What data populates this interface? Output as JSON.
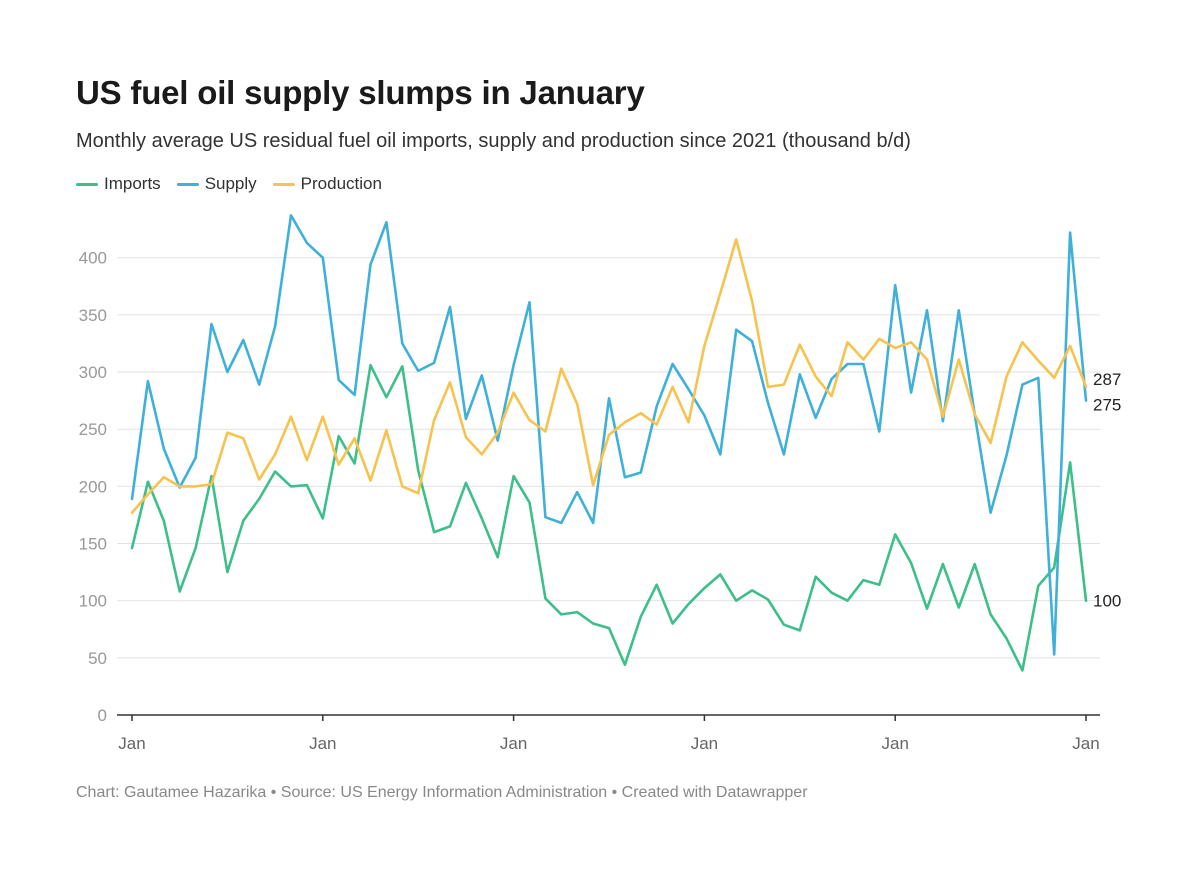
{
  "header": {
    "title": "US fuel oil supply slumps in January",
    "subtitle": "Monthly average US residual fuel oil imports, supply and production since 2021 (thousand b/d)"
  },
  "footer": {
    "credit": "Chart: Gautamee Hazarika • Source: US Energy Information Administration  • Created with Datawrapper"
  },
  "chart_data": {
    "type": "line",
    "ylim": [
      0,
      440
    ],
    "yticks": [
      0,
      50,
      100,
      150,
      200,
      250,
      300,
      350,
      400
    ],
    "x_tick_labels": [
      "Jan",
      "Jan",
      "Jan",
      "Jan",
      "Jan",
      "Jan"
    ],
    "x_tick_indices": [
      0,
      12,
      24,
      36,
      48,
      60
    ],
    "grid": true,
    "legend_position": "top-left",
    "series": [
      {
        "name": "Imports",
        "color": "#3cbf8a",
        "end_label": "100",
        "values": [
          146,
          204,
          170,
          108,
          146,
          209,
          125,
          170,
          189,
          213,
          200,
          201,
          172,
          244,
          220,
          306,
          278,
          305,
          214,
          160,
          165,
          203,
          172,
          138,
          209,
          186,
          102,
          88,
          90,
          80,
          76,
          44,
          86,
          114,
          80,
          97,
          111,
          123,
          100,
          109,
          101,
          79,
          74,
          121,
          107,
          100,
          118,
          114,
          158,
          133,
          93,
          132,
          94,
          132,
          88,
          67,
          39,
          113,
          129,
          221,
          100
        ]
      },
      {
        "name": "Supply",
        "color": "#3eb0d9",
        "end_label": "275",
        "values": [
          189,
          292,
          233,
          199,
          225,
          342,
          300,
          328,
          289,
          340,
          437,
          413,
          400,
          293,
          280,
          394,
          431,
          325,
          301,
          308,
          357,
          259,
          297,
          240,
          306,
          361,
          173,
          168,
          195,
          168,
          277,
          208,
          212,
          270,
          307,
          285,
          262,
          228,
          337,
          327,
          273,
          228,
          298,
          260,
          294,
          307,
          307,
          248,
          376,
          282,
          354,
          257,
          354,
          263,
          177,
          227,
          289,
          295,
          53,
          422,
          275
        ]
      },
      {
        "name": "Production",
        "color": "#f7c24e",
        "end_label": "287",
        "values": [
          177,
          193,
          208,
          200,
          200,
          202,
          247,
          242,
          206,
          228,
          261,
          223,
          261,
          219,
          242,
          205,
          249,
          200,
          194,
          258,
          291,
          243,
          228,
          247,
          282,
          258,
          248,
          303,
          272,
          201,
          245,
          256,
          264,
          254,
          287,
          256,
          323,
          369,
          416,
          362,
          287,
          289,
          324,
          296,
          279,
          326,
          311,
          329,
          321,
          326,
          311,
          261,
          311,
          263,
          238,
          296,
          326,
          310,
          295,
          323,
          287
        ]
      }
    ]
  }
}
